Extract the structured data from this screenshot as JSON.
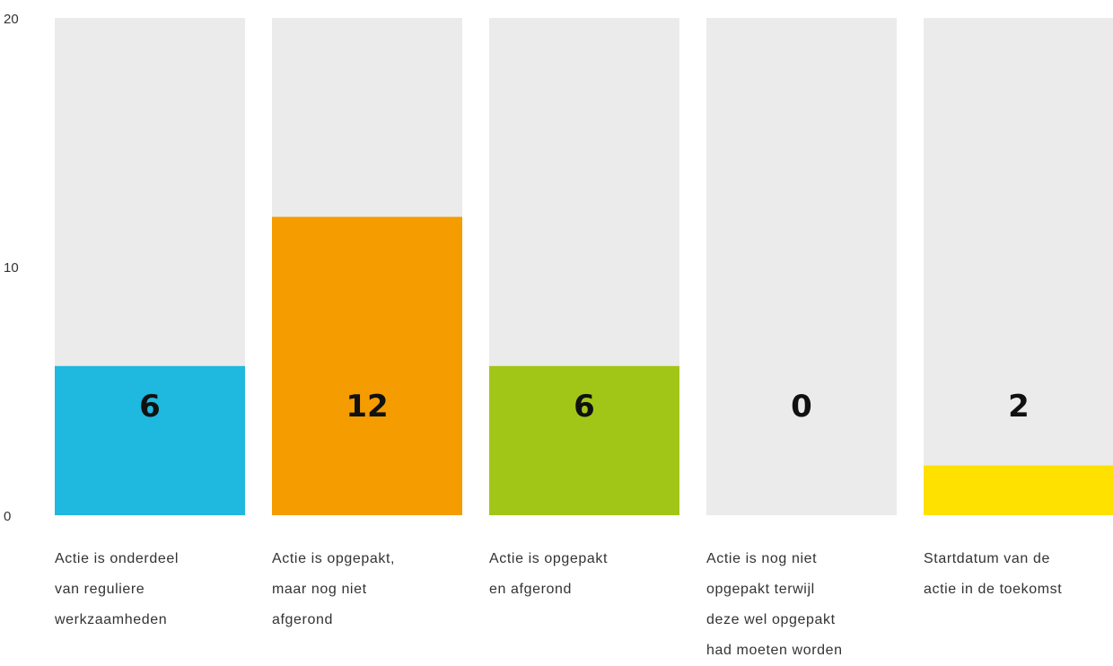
{
  "chart_data": {
    "type": "bar",
    "categories": [
      "Actie is onderdeel\nvan reguliere\nwerkzaamheden",
      "Actie is opgepakt,\nmaar nog niet\nafgerond",
      "Actie is opgepakt\nen afgerond",
      "Actie is nog niet\nopgepakt terwijl\ndeze wel opgepakt\nhad moeten worden",
      "Startdatum van de\nactie in de toekomst"
    ],
    "values": [
      6,
      12,
      6,
      0,
      2
    ],
    "value_labels": [
      "6",
      "12",
      "6",
      "0",
      "2"
    ],
    "colors": [
      "#1fb8de",
      "#f59c00",
      "#a2c617",
      "#ebebeb",
      "#ffe100"
    ],
    "track_color": "#ebebeb",
    "title": "",
    "xlabel": "",
    "ylabel": "",
    "ylim": [
      0,
      20
    ],
    "yticks": [
      0,
      10,
      20
    ],
    "ytick_labels": [
      "0",
      "10",
      "20"
    ],
    "grid": false,
    "legend": "none"
  }
}
